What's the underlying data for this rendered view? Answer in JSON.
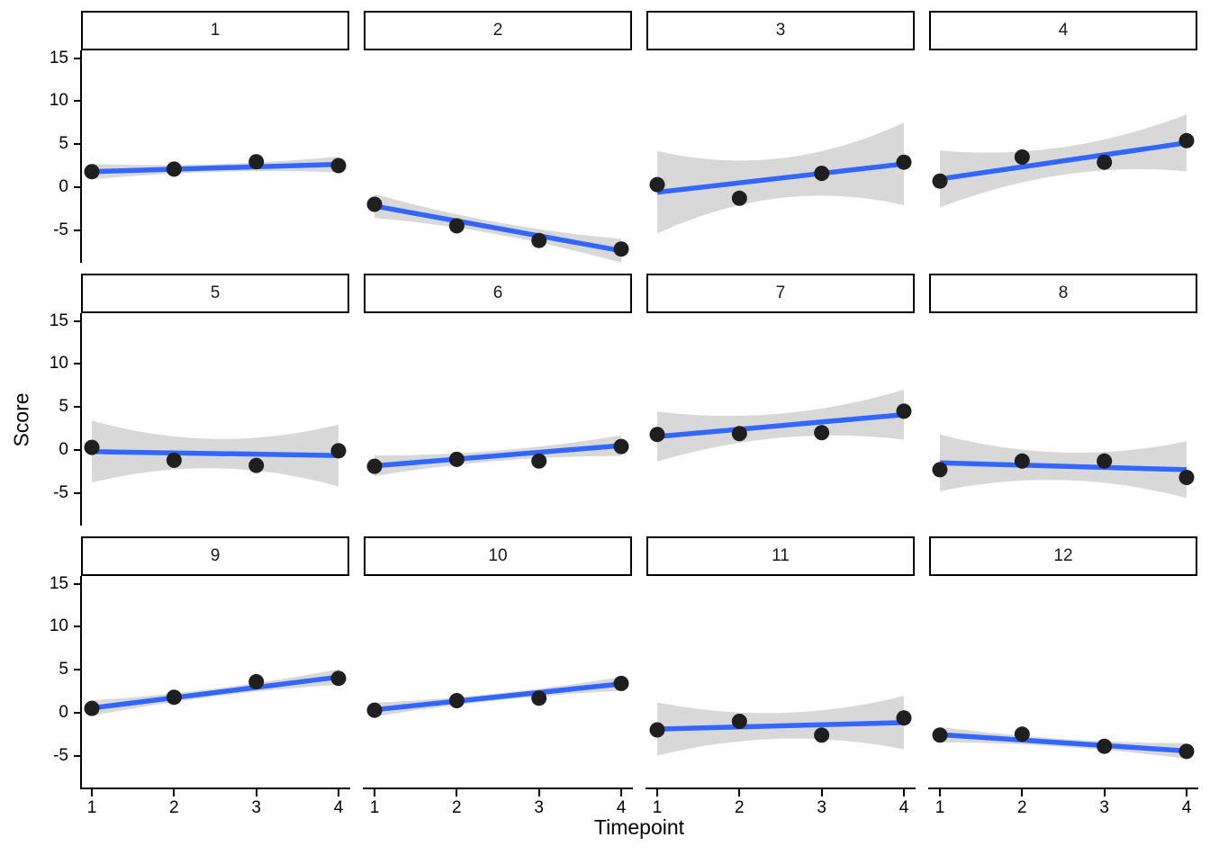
{
  "figure": {
    "ylabel": "Score",
    "xlabel": "Timepoint",
    "colors": {
      "trend_line": "#3366FF",
      "ci_ribbon": "#D8D8D8",
      "point": "#1F1F1F",
      "axis": "#000000",
      "strip_background": "#FFFFFF",
      "strip_border": "#000000",
      "background": "#FFFFFF"
    }
  },
  "chart_data": {
    "type": "scatter",
    "description": "Faceted scatter plots (12 facets) with linear trend lines and confidence ribbons",
    "x": [
      1,
      2,
      3,
      4
    ],
    "xlabel": "Timepoint",
    "ylabel": "Score",
    "x_ticks": [
      1,
      2,
      3,
      4
    ],
    "y_ticks": [
      15,
      10,
      5,
      0,
      -5
    ],
    "xlim": [
      0.85,
      4.15
    ],
    "ylim": [
      -8.8,
      15.9
    ],
    "grid": false,
    "legend": false,
    "panels": [
      {
        "label": "1",
        "points": [
          1.8,
          2.1,
          2.95,
          2.5
        ],
        "trend": {
          "start": 1.8,
          "end": 2.65
        },
        "ci": {
          "end_halfwidth": 0.9,
          "mid_halfwidth": 0.45
        }
      },
      {
        "label": "2",
        "points": [
          -2.0,
          -4.5,
          -6.2,
          -7.2
        ],
        "trend": {
          "start": -2.2,
          "end": -7.4
        },
        "ci": {
          "end_halfwidth": 1.4,
          "mid_halfwidth": 0.7
        }
      },
      {
        "label": "3",
        "points": [
          0.3,
          -1.3,
          1.6,
          2.9
        ],
        "trend": {
          "start": -0.6,
          "end": 2.7
        },
        "ci": {
          "end_halfwidth": 4.8,
          "mid_halfwidth": 2.3
        }
      },
      {
        "label": "4",
        "points": [
          0.7,
          3.5,
          2.9,
          5.4
        ],
        "trend": {
          "start": 0.95,
          "end": 5.15
        },
        "ci": {
          "end_halfwidth": 3.3,
          "mid_halfwidth": 1.6
        }
      },
      {
        "label": "5",
        "points": [
          0.3,
          -1.2,
          -1.8,
          -0.1
        ],
        "trend": {
          "start": -0.2,
          "end": -0.65
        },
        "ci": {
          "end_halfwidth": 3.6,
          "mid_halfwidth": 1.7
        }
      },
      {
        "label": "6",
        "points": [
          -1.9,
          -1.1,
          -1.3,
          0.4
        ],
        "trend": {
          "start": -1.85,
          "end": 0.5
        },
        "ci": {
          "end_halfwidth": 1.2,
          "mid_halfwidth": 0.6
        }
      },
      {
        "label": "7",
        "points": [
          1.8,
          1.9,
          2.0,
          4.5
        ],
        "trend": {
          "start": 1.55,
          "end": 4.1
        },
        "ci": {
          "end_halfwidth": 2.9,
          "mid_halfwidth": 1.4
        }
      },
      {
        "label": "8",
        "points": [
          -2.3,
          -1.3,
          -1.3,
          -3.2
        ],
        "trend": {
          "start": -1.5,
          "end": -2.3
        },
        "ci": {
          "end_halfwidth": 3.3,
          "mid_halfwidth": 1.6
        }
      },
      {
        "label": "9",
        "points": [
          0.5,
          1.8,
          3.6,
          4.0
        ],
        "trend": {
          "start": 0.55,
          "end": 4.15
        },
        "ci": {
          "end_halfwidth": 0.9,
          "mid_halfwidth": 0.45
        }
      },
      {
        "label": "10",
        "points": [
          0.3,
          1.4,
          1.7,
          3.4
        ],
        "trend": {
          "start": 0.35,
          "end": 3.35
        },
        "ci": {
          "end_halfwidth": 0.8,
          "mid_halfwidth": 0.4
        }
      },
      {
        "label": "11",
        "points": [
          -2.0,
          -1.0,
          -2.6,
          -0.6
        ],
        "trend": {
          "start": -1.9,
          "end": -1.15
        },
        "ci": {
          "end_halfwidth": 3.1,
          "mid_halfwidth": 1.5
        }
      },
      {
        "label": "12",
        "points": [
          -2.6,
          -2.5,
          -3.9,
          -4.5
        ],
        "trend": {
          "start": -2.55,
          "end": -4.45
        },
        "ci": {
          "end_halfwidth": 0.9,
          "mid_halfwidth": 0.45
        }
      }
    ]
  }
}
